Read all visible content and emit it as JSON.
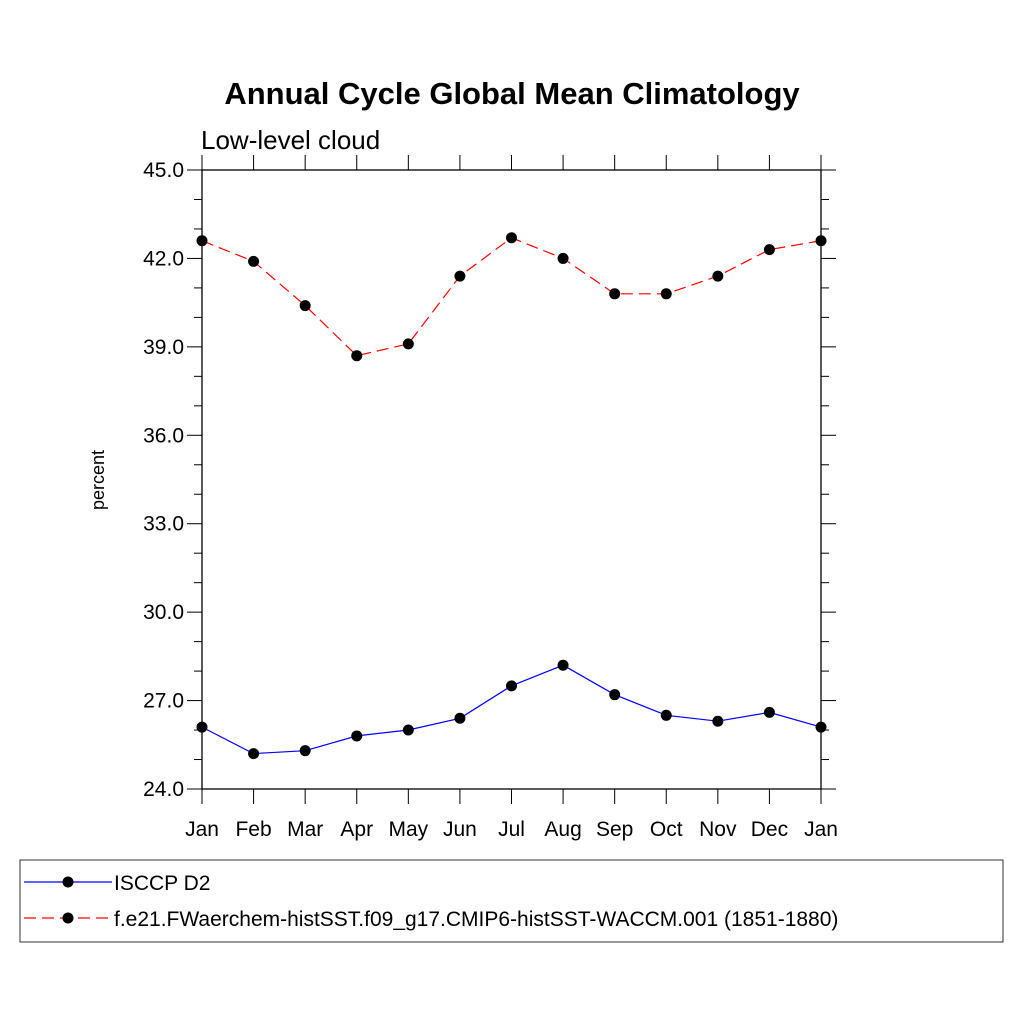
{
  "chart_data": {
    "type": "line",
    "title": "Annual Cycle Global Mean Climatology",
    "subtitle": "Low-level cloud",
    "xlabel": "",
    "ylabel": "percent",
    "categories": [
      "Jan",
      "Feb",
      "Mar",
      "Apr",
      "May",
      "Jun",
      "Jul",
      "Aug",
      "Sep",
      "Oct",
      "Nov",
      "Dec",
      "Jan"
    ],
    "ylim": [
      24.0,
      45.0
    ],
    "yticks": [
      "24.0",
      "27.0",
      "30.0",
      "33.0",
      "36.0",
      "39.0",
      "42.0",
      "45.0"
    ],
    "grid": false,
    "legend_position": "bottom",
    "series": [
      {
        "name": "ISCCP D2",
        "color": "#0000ff",
        "dash": "solid",
        "marker": "filled-circle",
        "values": [
          26.1,
          25.2,
          25.3,
          25.8,
          26.0,
          26.4,
          27.5,
          28.2,
          27.2,
          26.5,
          26.3,
          26.6,
          26.1
        ]
      },
      {
        "name": "f.e21.FWaerchem-histSST.f09_g17.CMIP6-histSST-WACCM.001 (1851-1880)",
        "color": "#ff0000",
        "dash": "dashed",
        "marker": "filled-circle",
        "values": [
          42.6,
          41.9,
          40.4,
          38.7,
          39.1,
          41.4,
          42.7,
          42.0,
          40.8,
          40.8,
          41.4,
          42.3,
          42.6
        ]
      }
    ]
  }
}
